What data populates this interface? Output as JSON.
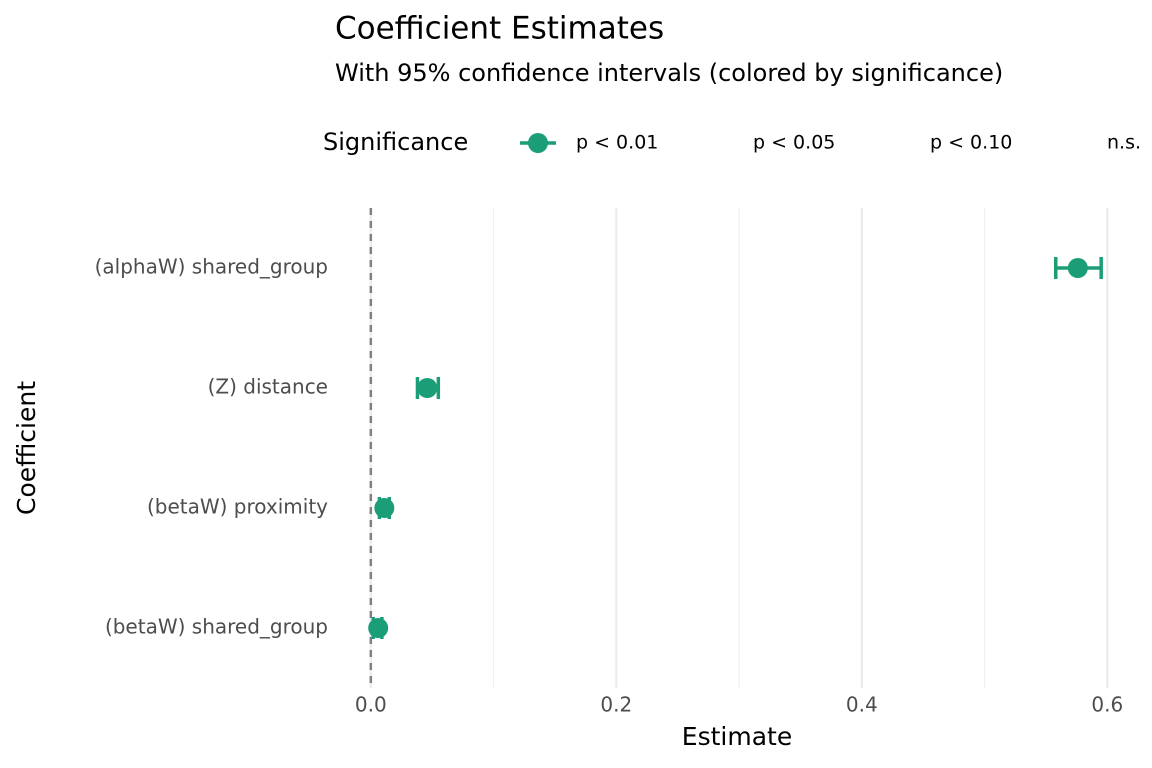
{
  "chart_data": {
    "type": "coefficient",
    "title": "Coefficient Estimates",
    "subtitle": "With 95% confidence intervals (colored by significance)",
    "x_label": "Estimate",
    "y_label": "Coefficient",
    "legend_title": "Significance",
    "legend_position": "top",
    "categories": [
      "(alphaW) shared_group",
      "(Z) distance",
      "(betaW) proximity",
      "(betaW) shared_group"
    ],
    "series": [
      {
        "name": "p < 0.01",
        "color": "#1b9e77",
        "values": [
          0.576,
          0.046,
          0.011,
          0.006
        ],
        "lower": [
          0.558,
          0.038,
          0.007,
          0.002
        ],
        "upper": [
          0.595,
          0.055,
          0.015,
          0.009
        ]
      },
      {
        "name": "p < 0.05",
        "values": [
          null,
          null,
          null,
          null
        ],
        "lower": [
          null,
          null,
          null,
          null
        ],
        "upper": [
          null,
          null,
          null,
          null
        ]
      },
      {
        "name": "p < 0.10",
        "values": [
          null,
          null,
          null,
          null
        ],
        "lower": [
          null,
          null,
          null,
          null
        ],
        "upper": [
          null,
          null,
          null,
          null
        ]
      },
      {
        "name": "n.s.",
        "values": [
          null,
          null,
          null,
          null
        ],
        "lower": [
          null,
          null,
          null,
          null
        ],
        "upper": [
          null,
          null,
          null,
          null
        ]
      }
    ],
    "xlim": [
      -0.03,
      0.625
    ],
    "xticks": [
      {
        "value": 0,
        "label": "0.0"
      },
      0.2,
      0.4,
      0.6
    ],
    "xminor": [
      0.1,
      0.3,
      0.5
    ],
    "xintercept": 0,
    "grid": true
  }
}
